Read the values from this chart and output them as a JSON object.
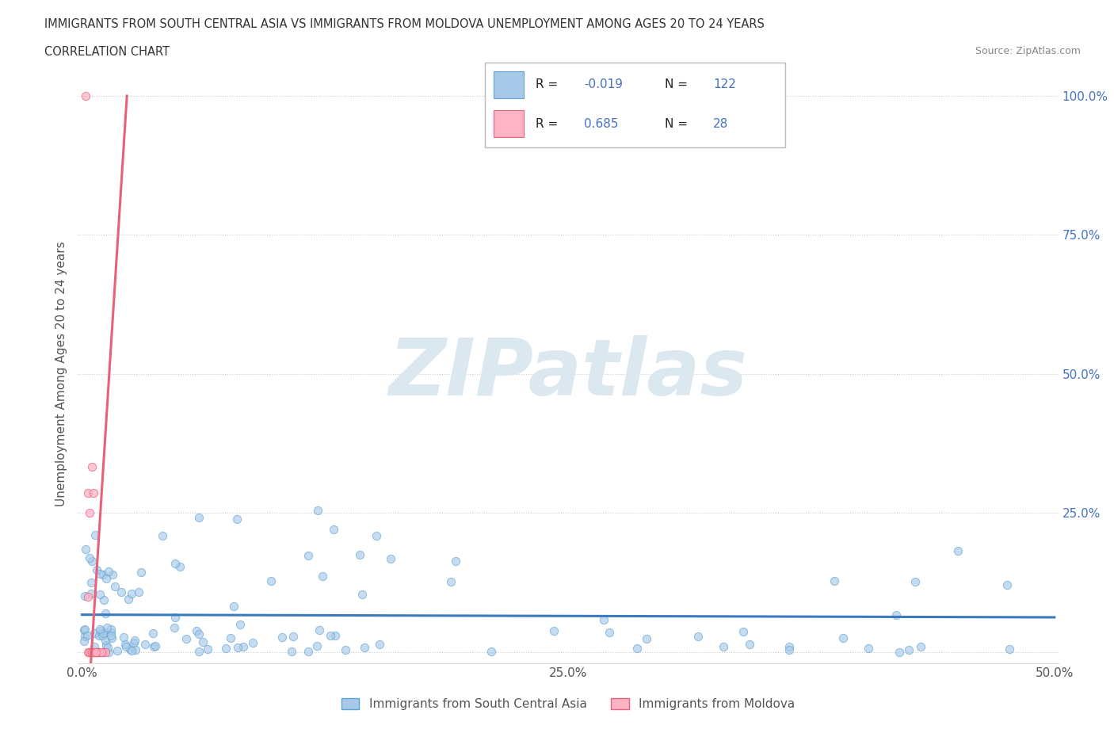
{
  "title_line1": "IMMIGRANTS FROM SOUTH CENTRAL ASIA VS IMMIGRANTS FROM MOLDOVA UNEMPLOYMENT AMONG AGES 20 TO 24 YEARS",
  "title_line2": "CORRELATION CHART",
  "source": "Source: ZipAtlas.com",
  "ylabel": "Unemployment Among Ages 20 to 24 years",
  "xlim": [
    -0.002,
    0.502
  ],
  "ylim": [
    -0.02,
    1.02
  ],
  "ytick_positions": [
    0.0,
    0.25,
    0.5,
    0.75,
    1.0
  ],
  "ytick_labels": [
    "",
    "25.0%",
    "50.0%",
    "75.0%",
    "100.0%"
  ],
  "xtick_positions": [
    0.0,
    0.125,
    0.25,
    0.375,
    0.5
  ],
  "xtick_labels": [
    "0.0%",
    "",
    "25.0%",
    "",
    "50.0%"
  ],
  "grid_color": "#cccccc",
  "grid_style": ":",
  "background_color": "#ffffff",
  "watermark_text": "ZIPatlas",
  "watermark_color": "#dce8f0",
  "series1_face": "#a8c8e8",
  "series1_edge": "#5ba3d0",
  "series2_face": "#ffb3c6",
  "series2_edge": "#e8607a",
  "trend1_color": "#3a7abf",
  "trend2_color": "#e8607a",
  "ref_line_color": "#cccccc",
  "legend_label1": "Immigrants from South Central Asia",
  "legend_label2": "Immigrants from Moldova",
  "R1": -0.019,
  "N1": 122,
  "R2": 0.685,
  "N2": 28,
  "tick_color_y": "#4472c4",
  "tick_color_x": "#555555",
  "ylabel_color": "#555555"
}
